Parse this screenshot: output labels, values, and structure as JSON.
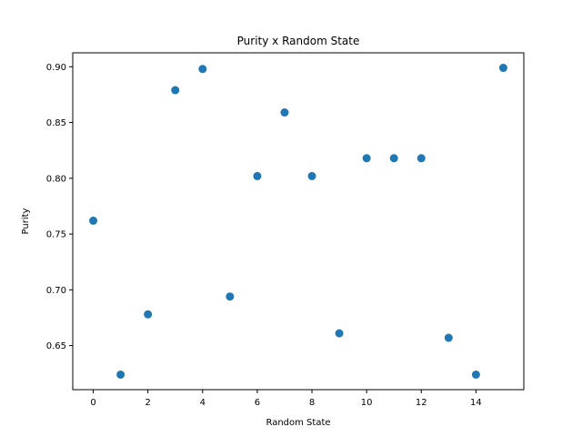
{
  "chart_data": {
    "type": "scatter",
    "title": "Purity x Random State",
    "xlabel": "Random State",
    "ylabel": "Purity",
    "x": [
      0,
      1,
      2,
      3,
      4,
      5,
      6,
      7,
      8,
      9,
      10,
      11,
      12,
      13,
      14,
      15
    ],
    "y": [
      0.762,
      0.624,
      0.678,
      0.879,
      0.898,
      0.694,
      0.802,
      0.859,
      0.802,
      0.661,
      0.818,
      0.818,
      0.818,
      0.657,
      0.624,
      0.899
    ],
    "xlim": [
      -0.75,
      15.75
    ],
    "ylim": [
      0.6105,
      0.9125
    ],
    "xticks": [
      0,
      2,
      4,
      6,
      8,
      10,
      12,
      14
    ],
    "xtick_labels": [
      "0",
      "2",
      "4",
      "6",
      "8",
      "10",
      "12",
      "14"
    ],
    "yticks": [
      0.65,
      0.7,
      0.75,
      0.8,
      0.85,
      0.9
    ],
    "ytick_labels": [
      "0.65",
      "0.70",
      "0.75",
      "0.80",
      "0.85",
      "0.90"
    ],
    "grid": false,
    "marker_color": "#1f77b4"
  }
}
